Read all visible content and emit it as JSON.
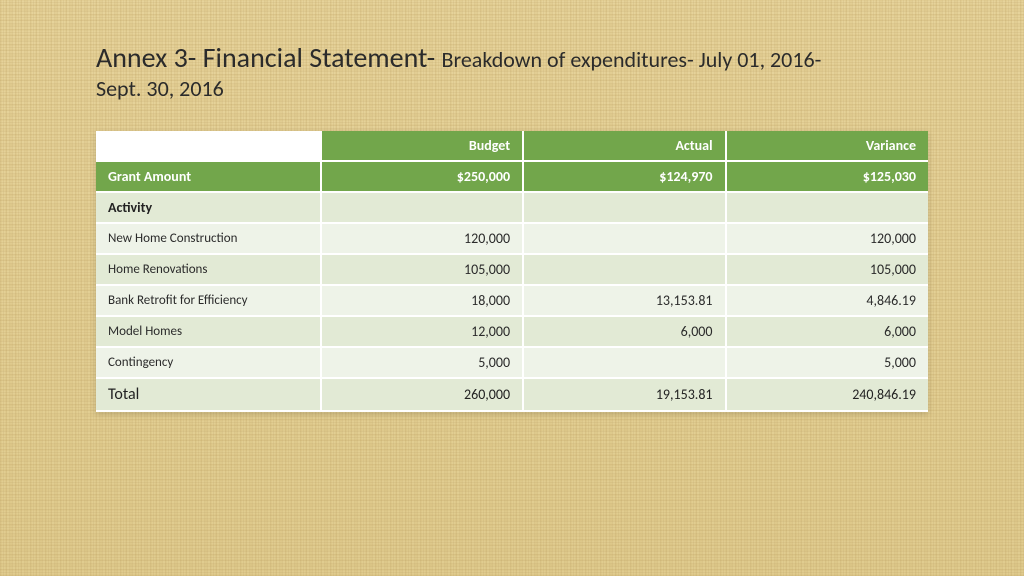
{
  "title": {
    "main": "Annex 3- Financial Statement- ",
    "sub_inline": "Breakdown of expenditures- July 01, 2016-",
    "sub_line2": "Sept. 30, 2016"
  },
  "table": {
    "type": "table",
    "colors": {
      "header_green": "#72a64b",
      "row_base": "#eef3e8",
      "row_alt": "#e2ead5",
      "white": "#ffffff",
      "text": "#2b2b2b"
    },
    "columns": [
      "",
      "Budget",
      "Actual",
      "Variance"
    ],
    "grant_row": {
      "label": "Grant Amount",
      "budget": "$250,000",
      "actual": "$124,970",
      "variance": "$125,030"
    },
    "activity_label": "Activity",
    "rows": [
      {
        "label": "New Home Construction",
        "budget": "120,000",
        "actual": "",
        "variance": "120,000"
      },
      {
        "label": "Home Renovations",
        "budget": "105,000",
        "actual": "",
        "variance": "105,000"
      },
      {
        "label": "Bank Retrofit for Efficiency",
        "budget": "18,000",
        "actual": "13,153.81",
        "variance": "4,846.19"
      },
      {
        "label": "Model Homes",
        "budget": "12,000",
        "actual": "6,000",
        "variance": "6,000"
      },
      {
        "label": "Contingency",
        "budget": "5,000",
        "actual": "",
        "variance": "5,000"
      }
    ],
    "total_row": {
      "label": "Total",
      "budget": "260,000",
      "actual": "19,153.81",
      "variance": "240,846.19"
    }
  }
}
